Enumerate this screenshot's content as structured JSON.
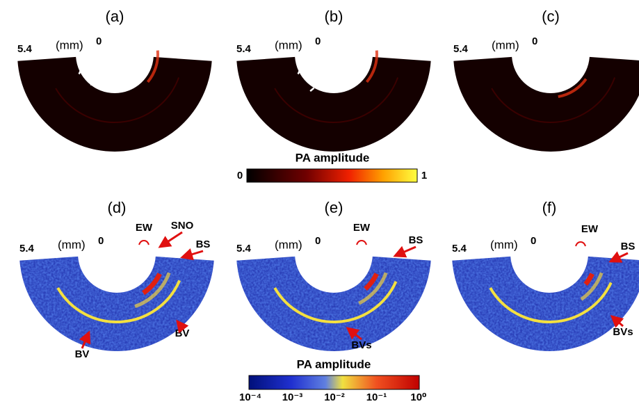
{
  "panels": [
    {
      "label": "(a)",
      "scale_max": "5.4",
      "unit": "(mm)",
      "scale_min": "0",
      "annotations": []
    },
    {
      "label": "(b)",
      "scale_max": "5.4",
      "unit": "(mm)",
      "scale_min": "0",
      "annotations": []
    },
    {
      "label": "(c)",
      "scale_max": "5.4",
      "unit": "(mm)",
      "scale_min": "0",
      "annotations": []
    },
    {
      "label": "(d)",
      "scale_max": "5.4",
      "unit": "(mm)",
      "scale_min": "0",
      "annotations": [
        "EW",
        "SNO",
        "BS",
        "BV",
        "BV"
      ]
    },
    {
      "label": "(e)",
      "scale_max": "5.4",
      "unit": "(mm)",
      "scale_min": "0",
      "annotations": [
        "EW",
        "BS",
        "BVs"
      ]
    },
    {
      "label": "(f)",
      "scale_max": "5.4",
      "unit": "(mm)",
      "scale_min": "0",
      "annotations": [
        "EW",
        "BS",
        "BVs"
      ]
    }
  ],
  "colorbars": [
    {
      "title": "PA amplitude",
      "tick_labels": [
        "0",
        "1"
      ]
    },
    {
      "title": "PA amplitude",
      "tick_labels": [
        "10⁻⁴",
        "10⁻³",
        "10⁻²",
        "10⁻¹",
        "10⁰"
      ]
    }
  ]
}
